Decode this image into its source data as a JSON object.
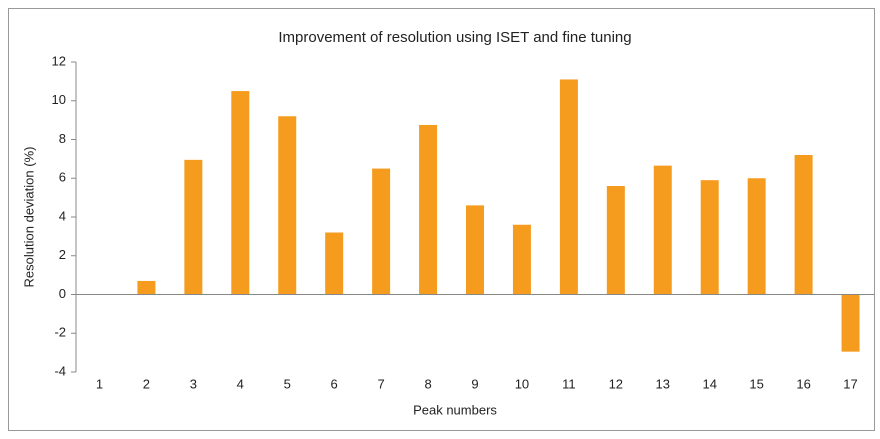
{
  "chart_data": {
    "type": "bar",
    "title": "Improvement of resolution using ISET and fine tuning",
    "x_label": "Peak numbers",
    "y_label": "Resolution deviation (%)",
    "categories": [
      "1",
      "2",
      "3",
      "4",
      "5",
      "6",
      "7",
      "8",
      "9",
      "10",
      "11",
      "12",
      "13",
      "14",
      "15",
      "16",
      "17"
    ],
    "values": [
      0,
      0.7,
      6.95,
      10.5,
      9.2,
      3.2,
      6.5,
      8.75,
      4.6,
      3.6,
      11.1,
      5.6,
      6.65,
      5.9,
      6.0,
      7.2,
      -2.95
    ],
    "color": "#f59c1f",
    "ylim": [
      -4,
      12
    ],
    "yticks": [
      -4,
      -2,
      0,
      2,
      4,
      6,
      8,
      10,
      12
    ],
    "grid": false
  }
}
